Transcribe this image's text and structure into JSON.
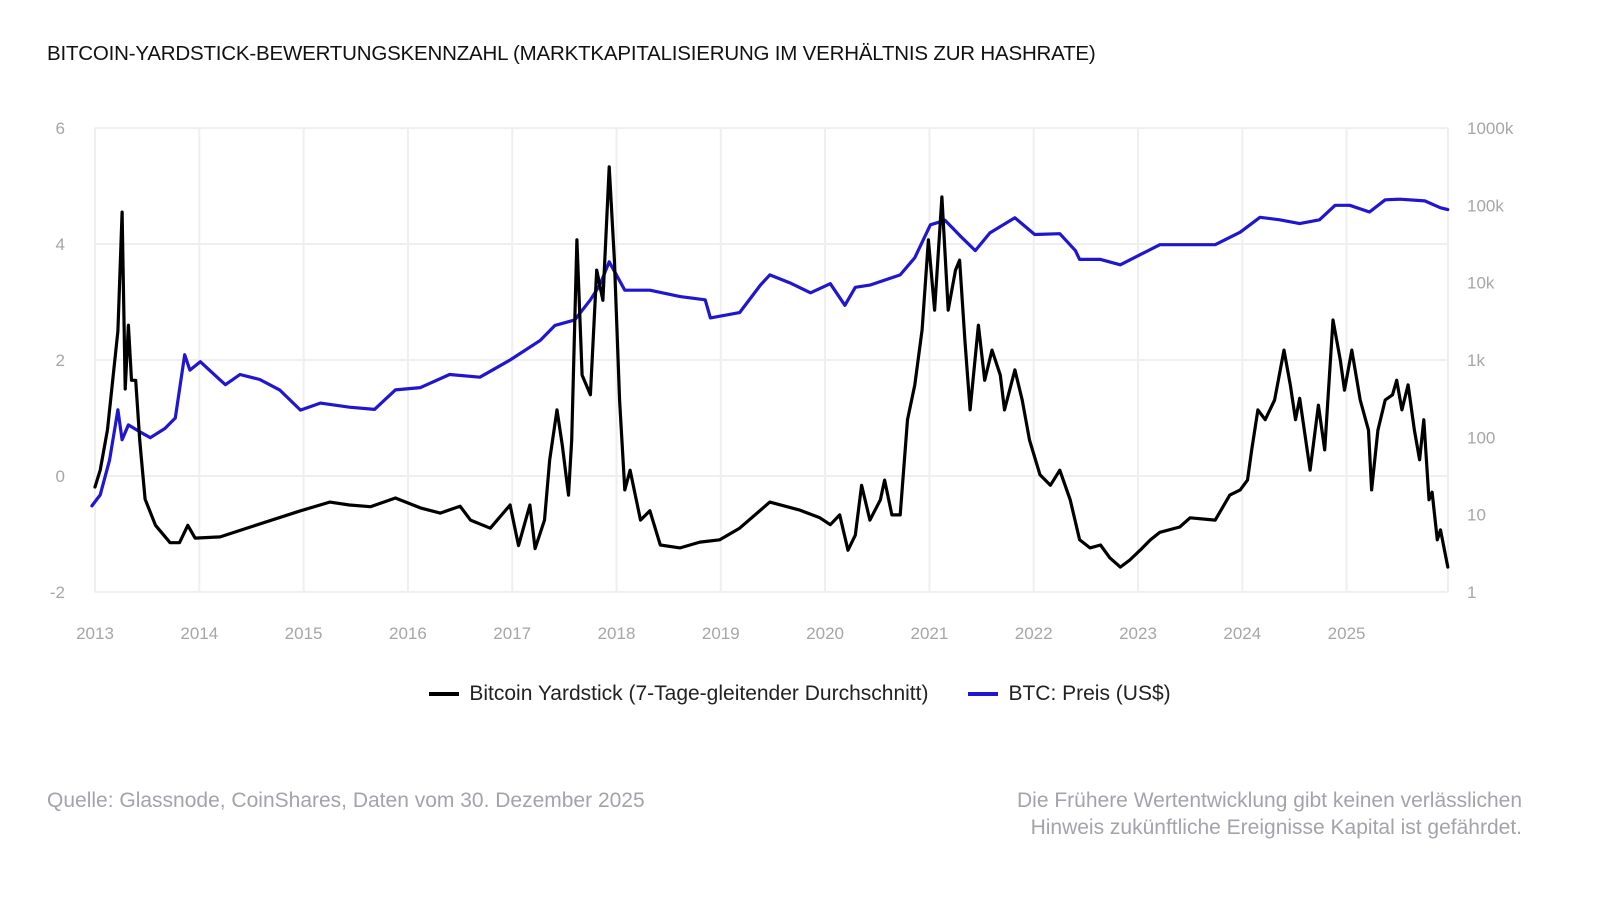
{
  "chart_data": {
    "type": "line",
    "title": "BITCOIN-YARDSTICK-BEWERTUNGSKENNZAHL (MARKTKAPITALISIERUNG IM VERHÄLTNIS ZUR HASHRATE)",
    "x_unit": "year",
    "xlim": [
      2013,
      2026
    ],
    "x_ticks": [
      "2013",
      "2014",
      "2015",
      "2016",
      "2017",
      "2018",
      "2019",
      "2020",
      "2021",
      "2022",
      "2023",
      "2024",
      "2025"
    ],
    "y_left": {
      "ticks": [
        "6",
        "4",
        "2",
        "0",
        "-2"
      ],
      "lim": [
        -2,
        6
      ],
      "scale": "linear"
    },
    "y_right": {
      "ticks": [
        "1000k",
        "100k",
        "10k",
        "1k",
        "100",
        "10",
        "1"
      ],
      "lim": [
        1,
        1000000
      ],
      "scale": "log"
    },
    "grid": true,
    "legend_position": "bottom",
    "series": [
      {
        "name": "Bitcoin Yardstick (7-Tage-gleitender Durchschnitt)",
        "axis": "left",
        "color": "#000000",
        "x": [
          2013.0,
          2013.05,
          2013.12,
          2013.17,
          2013.22,
          2013.26,
          2013.29,
          2013.32,
          2013.35,
          2013.39,
          2013.43,
          2013.48,
          2013.58,
          2013.72,
          2013.81,
          2013.89,
          2013.96,
          2014.2,
          2014.49,
          2014.97,
          2015.25,
          2015.44,
          2015.64,
          2015.88,
          2016.12,
          2016.31,
          2016.5,
          2016.6,
          2016.79,
          2016.98,
          2017.06,
          2017.17,
          2017.22,
          2017.31,
          2017.36,
          2017.43,
          2017.48,
          2017.54,
          2017.57,
          2017.62,
          2017.67,
          2017.75,
          2017.81,
          2017.87,
          2017.93,
          2017.98,
          2018.03,
          2018.08,
          2018.13,
          2018.23,
          2018.32,
          2018.42,
          2018.61,
          2018.8,
          2018.99,
          2019.18,
          2019.47,
          2019.76,
          2019.95,
          2020.05,
          2020.14,
          2020.22,
          2020.29,
          2020.35,
          2020.43,
          2020.53,
          2020.57,
          2020.64,
          2020.72,
          2020.79,
          2020.86,
          2020.93,
          2020.99,
          2021.05,
          2021.12,
          2021.18,
          2021.25,
          2021.29,
          2021.34,
          2021.39,
          2021.47,
          2021.53,
          2021.6,
          2021.68,
          2021.72,
          2021.82,
          2021.89,
          2021.96,
          2022.06,
          2022.16,
          2022.25,
          2022.35,
          2022.44,
          2022.54,
          2022.64,
          2022.73,
          2022.83,
          2022.92,
          2023.02,
          2023.12,
          2023.21,
          2023.4,
          2023.5,
          2023.74,
          2023.88,
          2023.98,
          2024.05,
          2024.09,
          2024.15,
          2024.22,
          2024.31,
          2024.4,
          2024.46,
          2024.51,
          2024.55,
          2024.65,
          2024.73,
          2024.79,
          2024.87,
          2024.94,
          2024.98,
          2025.05,
          2025.13,
          2025.21,
          2025.24,
          2025.3,
          2025.37,
          2025.44,
          2025.48,
          2025.53,
          2025.59,
          2025.65,
          2025.7,
          2025.74,
          2025.79,
          2025.82,
          2025.87,
          2025.9,
          2025.97
        ],
        "y": [
          -0.19,
          0.1,
          0.8,
          1.65,
          2.5,
          4.55,
          1.5,
          2.6,
          1.65,
          1.65,
          0.6,
          -0.4,
          -0.85,
          -1.15,
          -1.15,
          -0.85,
          -1.07,
          -1.05,
          -0.88,
          -0.6,
          -0.45,
          -0.5,
          -0.53,
          -0.38,
          -0.55,
          -0.64,
          -0.52,
          -0.76,
          -0.9,
          -0.5,
          -1.2,
          -0.5,
          -1.25,
          -0.76,
          0.28,
          1.14,
          0.53,
          -0.33,
          0.62,
          4.07,
          1.74,
          1.4,
          3.55,
          3.03,
          5.33,
          3.72,
          1.3,
          -0.24,
          0.1,
          -0.76,
          -0.6,
          -1.19,
          -1.24,
          -1.14,
          -1.1,
          -0.9,
          -0.45,
          -0.59,
          -0.72,
          -0.84,
          -0.67,
          -1.28,
          -1.02,
          -0.16,
          -0.76,
          -0.41,
          -0.07,
          -0.67,
          -0.67,
          0.97,
          1.57,
          2.52,
          4.07,
          2.86,
          4.81,
          2.86,
          3.55,
          3.72,
          2.34,
          1.14,
          2.6,
          1.65,
          2.17,
          1.74,
          1.14,
          1.83,
          1.31,
          0.62,
          0.02,
          -0.16,
          0.1,
          -0.41,
          -1.1,
          -1.24,
          -1.19,
          -1.41,
          -1.57,
          -1.45,
          -1.28,
          -1.1,
          -0.97,
          -0.88,
          -0.72,
          -0.76,
          -0.33,
          -0.24,
          -0.07,
          0.45,
          1.14,
          0.97,
          1.31,
          2.17,
          1.57,
          0.97,
          1.34,
          0.1,
          1.22,
          0.45,
          2.69,
          2.0,
          1.48,
          2.17,
          1.31,
          0.79,
          -0.24,
          0.79,
          1.31,
          1.4,
          1.65,
          1.14,
          1.57,
          0.79,
          0.28,
          0.97,
          -0.41,
          -0.28,
          -1.1,
          -0.93,
          -1.57
        ]
      },
      {
        "name": "BTC: Preis (US$)",
        "axis": "right",
        "color": "#2016d0",
        "x": [
          2012.97,
          2013.05,
          2013.14,
          2013.22,
          2013.26,
          2013.32,
          2013.43,
          2013.53,
          2013.67,
          2013.77,
          2013.86,
          2013.91,
          2014.01,
          2014.2,
          2014.25,
          2014.39,
          2014.58,
          2014.77,
          2014.97,
          2015.16,
          2015.44,
          2015.68,
          2015.88,
          2016.12,
          2016.4,
          2016.69,
          2016.98,
          2017.27,
          2017.41,
          2017.6,
          2017.75,
          2017.84,
          2017.93,
          2018.08,
          2018.32,
          2018.61,
          2018.85,
          2018.9,
          2019.18,
          2019.38,
          2019.47,
          2019.66,
          2019.86,
          2020.05,
          2020.19,
          2020.29,
          2020.43,
          2020.72,
          2020.86,
          2021.01,
          2021.15,
          2021.29,
          2021.44,
          2021.58,
          2021.82,
          2022.01,
          2022.25,
          2022.4,
          2022.44,
          2022.64,
          2022.83,
          2023.02,
          2023.21,
          2023.5,
          2023.74,
          2023.98,
          2024.17,
          2024.36,
          2024.55,
          2024.74,
          2024.89,
          2025.03,
          2025.22,
          2025.37,
          2025.51,
          2025.75,
          2025.9,
          2025.97
        ],
        "y": [
          13,
          18,
          51,
          227,
          93,
          145,
          118,
          99,
          130,
          178,
          1170,
          740,
          950,
          550,
          480,
          650,
          560,
          410,
          225,
          277,
          245,
          230,
          410,
          440,
          650,
          600,
          1000,
          1800,
          2800,
          3300,
          6000,
          9300,
          18600,
          8000,
          8000,
          6600,
          6000,
          3500,
          4100,
          9300,
          12600,
          10000,
          7400,
          9700,
          5100,
          8700,
          9300,
          12600,
          21000,
          56000,
          64000,
          41000,
          26000,
          44000,
          69000,
          42000,
          43000,
          26000,
          20000,
          20000,
          17000,
          23000,
          31000,
          31000,
          31000,
          45000,
          70000,
          65000,
          58000,
          65000,
          100000,
          100000,
          82000,
          118000,
          120000,
          114000,
          93000,
          88000
        ]
      }
    ]
  },
  "legend": [
    {
      "label": "Bitcoin Yardstick (7-Tage-gleitender Durchschnitt)",
      "color": "#000000"
    },
    {
      "label": "BTC: Preis (US$)",
      "color": "#2016d0"
    }
  ],
  "footer": {
    "source": "Quelle: Glassnode, CoinShares, Daten vom 30. Dezember 2025",
    "disclaimer_line1": "Die Frühere Wertentwicklung gibt keinen verlässlichen",
    "disclaimer_line2": "Hinweis zukünftliche Ereignisse Kapital ist gefährdet."
  }
}
